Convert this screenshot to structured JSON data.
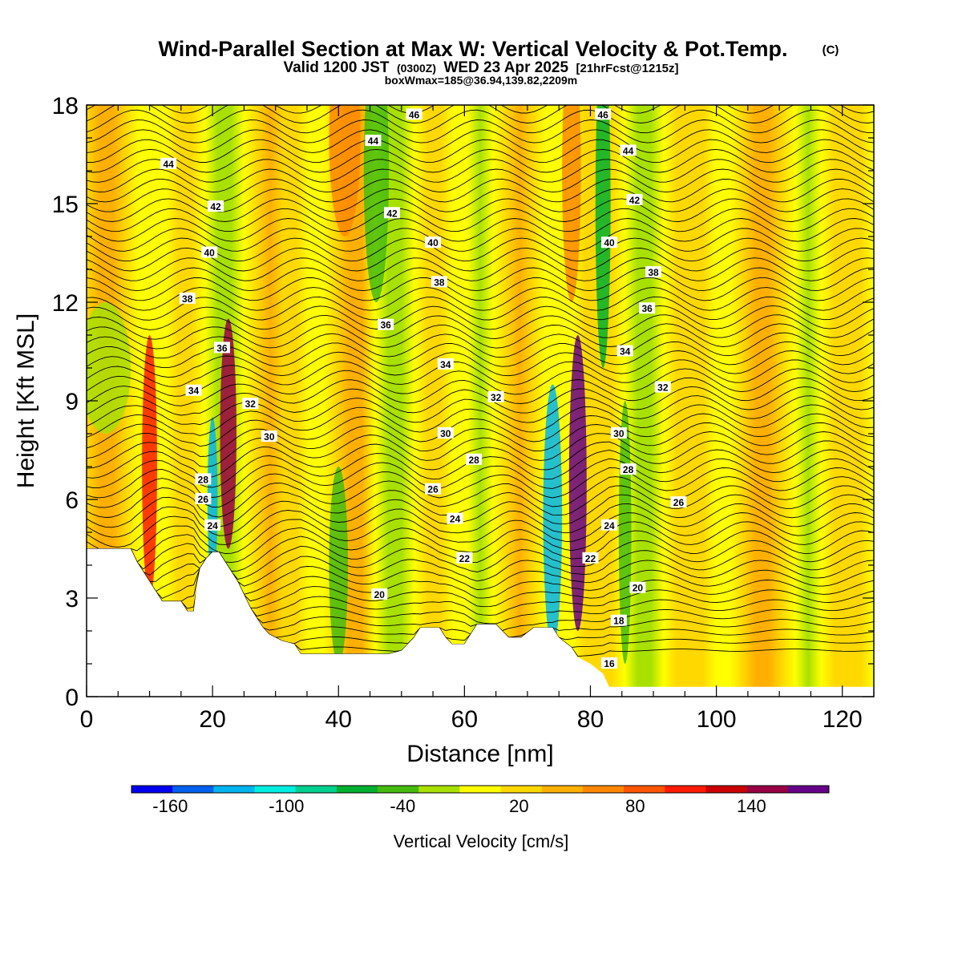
{
  "chart_data": {
    "type": "heatmap",
    "title": "Wind-Parallel Section at Max W: Vertical Velocity & Pot.Temp.",
    "title_mark": "(C)",
    "subtitle": {
      "prefix": "Valid 1200 JST",
      "utc": "(0300Z)",
      "date": "WED 23 Apr 2025",
      "fcst": "[21hrFcst@1215z]"
    },
    "subtitle2": "boxWmax=185@36.94,139.82,2209m",
    "xlabel": "Distance [nm]",
    "ylabel": "Height [Kft MSL]",
    "xlim": [
      0,
      125
    ],
    "ylim": [
      0,
      18
    ],
    "x_ticks": [
      0,
      20,
      40,
      60,
      80,
      100,
      120
    ],
    "y_ticks": [
      0,
      3,
      6,
      9,
      12,
      15,
      18
    ],
    "colorbar": {
      "label": "Vertical Velocity [cm/s]",
      "range": [
        -180,
        180
      ],
      "tick_values": [
        -160,
        -100,
        -40,
        20,
        80,
        140
      ],
      "colors": [
        "#0000f0",
        "#0060f0",
        "#00b4f0",
        "#00eee0",
        "#00d090",
        "#00b030",
        "#44bb10",
        "#a8e000",
        "#ffff00",
        "#ffd800",
        "#ffaf00",
        "#ff8800",
        "#ff5500",
        "#ff1a00",
        "#cc0000",
        "#990044",
        "#660088"
      ]
    },
    "theta_contour_levels": [
      16,
      18,
      20,
      22,
      24,
      26,
      28,
      30,
      32,
      34,
      36,
      38,
      40,
      42,
      44,
      46
    ],
    "theta_labels": [
      {
        "text": "46",
        "x": 52,
        "y": 17.7
      },
      {
        "text": "46",
        "x": 82,
        "y": 17.7
      },
      {
        "text": "44",
        "x": 45.5,
        "y": 16.9
      },
      {
        "text": "44",
        "x": 13,
        "y": 16.2
      },
      {
        "text": "44",
        "x": 86,
        "y": 16.6
      },
      {
        "text": "42",
        "x": 20.5,
        "y": 14.9
      },
      {
        "text": "42",
        "x": 48.5,
        "y": 14.7
      },
      {
        "text": "42",
        "x": 87,
        "y": 15.1
      },
      {
        "text": "40",
        "x": 19.5,
        "y": 13.5
      },
      {
        "text": "40",
        "x": 55,
        "y": 13.8
      },
      {
        "text": "40",
        "x": 83,
        "y": 13.8
      },
      {
        "text": "38",
        "x": 16,
        "y": 12.1
      },
      {
        "text": "38",
        "x": 56,
        "y": 12.6
      },
      {
        "text": "38",
        "x": 90,
        "y": 12.9
      },
      {
        "text": "36",
        "x": 21.5,
        "y": 10.6
      },
      {
        "text": "36",
        "x": 47.5,
        "y": 11.3
      },
      {
        "text": "36",
        "x": 89,
        "y": 11.8
      },
      {
        "text": "34",
        "x": 17,
        "y": 9.3
      },
      {
        "text": "34",
        "x": 57,
        "y": 10.1
      },
      {
        "text": "34",
        "x": 85.5,
        "y": 10.5
      },
      {
        "text": "32",
        "x": 26,
        "y": 8.9
      },
      {
        "text": "32",
        "x": 65,
        "y": 9.1
      },
      {
        "text": "32",
        "x": 91.5,
        "y": 9.4
      },
      {
        "text": "30",
        "x": 29,
        "y": 7.9
      },
      {
        "text": "30",
        "x": 57,
        "y": 8.0
      },
      {
        "text": "30",
        "x": 84.5,
        "y": 8.0
      },
      {
        "text": "28",
        "x": 18.5,
        "y": 6.6
      },
      {
        "text": "28",
        "x": 61.5,
        "y": 7.2
      },
      {
        "text": "28",
        "x": 86,
        "y": 6.9
      },
      {
        "text": "26",
        "x": 18.5,
        "y": 6.0
      },
      {
        "text": "26",
        "x": 55,
        "y": 6.3
      },
      {
        "text": "26",
        "x": 94,
        "y": 5.9
      },
      {
        "text": "24",
        "x": 20,
        "y": 5.2
      },
      {
        "text": "24",
        "x": 58.5,
        "y": 5.4
      },
      {
        "text": "24",
        "x": 83,
        "y": 5.2
      },
      {
        "text": "22",
        "x": 60,
        "y": 4.2
      },
      {
        "text": "22",
        "x": 80,
        "y": 4.2
      },
      {
        "text": "20",
        "x": 46.5,
        "y": 3.1
      },
      {
        "text": "20",
        "x": 87.5,
        "y": 3.3
      },
      {
        "text": "18",
        "x": 84.5,
        "y": 2.3
      },
      {
        "text": "16",
        "x": 83,
        "y": 1.0
      }
    ],
    "terrain": [
      [
        0,
        4.5
      ],
      [
        7,
        4.5
      ],
      [
        8,
        4.1
      ],
      [
        9,
        3.8
      ],
      [
        10,
        3.5
      ],
      [
        11,
        3.2
      ],
      [
        12,
        2.9
      ],
      [
        13,
        2.9
      ],
      [
        15,
        2.9
      ],
      [
        16,
        2.6
      ],
      [
        17,
        2.6
      ],
      [
        17.5,
        3.4
      ],
      [
        18,
        3.9
      ],
      [
        19,
        4.2
      ],
      [
        20,
        4.4
      ],
      [
        21,
        4.4
      ],
      [
        22,
        4.1
      ],
      [
        23,
        3.8
      ],
      [
        24,
        3.5
      ],
      [
        25,
        3.1
      ],
      [
        26,
        2.7
      ],
      [
        27,
        2.4
      ],
      [
        28,
        2.1
      ],
      [
        29,
        1.9
      ],
      [
        30,
        1.8
      ],
      [
        31,
        1.7
      ],
      [
        33,
        1.6
      ],
      [
        34,
        1.3
      ],
      [
        40,
        1.3
      ],
      [
        46,
        1.3
      ],
      [
        48,
        1.3
      ],
      [
        50,
        1.4
      ],
      [
        52,
        1.8
      ],
      [
        53,
        2.1
      ],
      [
        56,
        2.1
      ],
      [
        57,
        1.8
      ],
      [
        58,
        1.6
      ],
      [
        60,
        1.6
      ],
      [
        62,
        2.2
      ],
      [
        65,
        2.2
      ],
      [
        66,
        2.0
      ],
      [
        67,
        1.8
      ],
      [
        69,
        1.8
      ],
      [
        71,
        2.1
      ],
      [
        74,
        2.1
      ],
      [
        75,
        1.8
      ],
      [
        77,
        1.5
      ],
      [
        78,
        1.2
      ],
      [
        80,
        1.0
      ],
      [
        82,
        0.7
      ],
      [
        83,
        0.3
      ],
      [
        125,
        0.3
      ]
    ]
  }
}
